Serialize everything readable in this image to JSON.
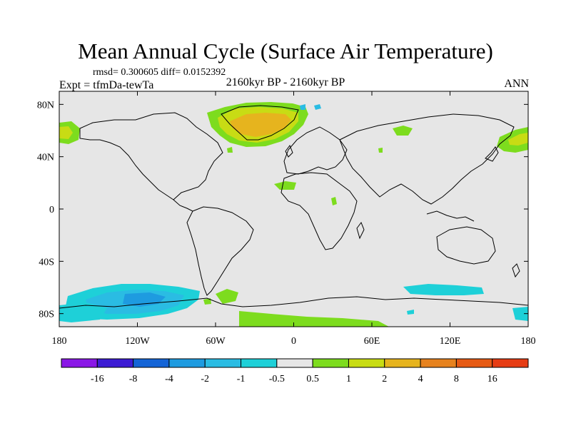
{
  "title": "Mean Annual Cycle (Surface Air Temperature)",
  "stats": "rmsd= 0.300605 diff= 0.0152392",
  "subtitle": "2160kyr BP - 2160kyr BP",
  "experiment": "Expt = tfmDa-tewTa",
  "season": "ANN",
  "map": {
    "lat_labels": [
      {
        "label": "80N",
        "lat": 80
      },
      {
        "label": "40N",
        "lat": 40
      },
      {
        "label": "0",
        "lat": 0
      },
      {
        "label": "40S",
        "lat": -40
      },
      {
        "label": "80S",
        "lat": -80
      }
    ],
    "lon_labels": [
      {
        "label": "180",
        "lon": -180
      },
      {
        "label": "120W",
        "lon": -120
      },
      {
        "label": "60W",
        "lon": -60
      },
      {
        "label": "0",
        "lon": 0
      },
      {
        "label": "60E",
        "lon": 60
      },
      {
        "label": "120E",
        "lon": 120
      },
      {
        "label": "180",
        "lon": 180
      }
    ],
    "background_color": "#e6e6e6"
  },
  "colorbar": {
    "labels": [
      "-16",
      "-8",
      "-4",
      "-2",
      "-1",
      "-0.5",
      "0.5",
      "1",
      "2",
      "4",
      "8",
      "16"
    ],
    "colors": [
      "#8a17e6",
      "#3c1bd4",
      "#1464d6",
      "#1e9be0",
      "#2abce3",
      "#1ed0d8",
      "#e6e6e6",
      "#7ddc1e",
      "#c8dc14",
      "#e6b41e",
      "#e6821e",
      "#e65a14",
      "#e63c14"
    ]
  }
}
